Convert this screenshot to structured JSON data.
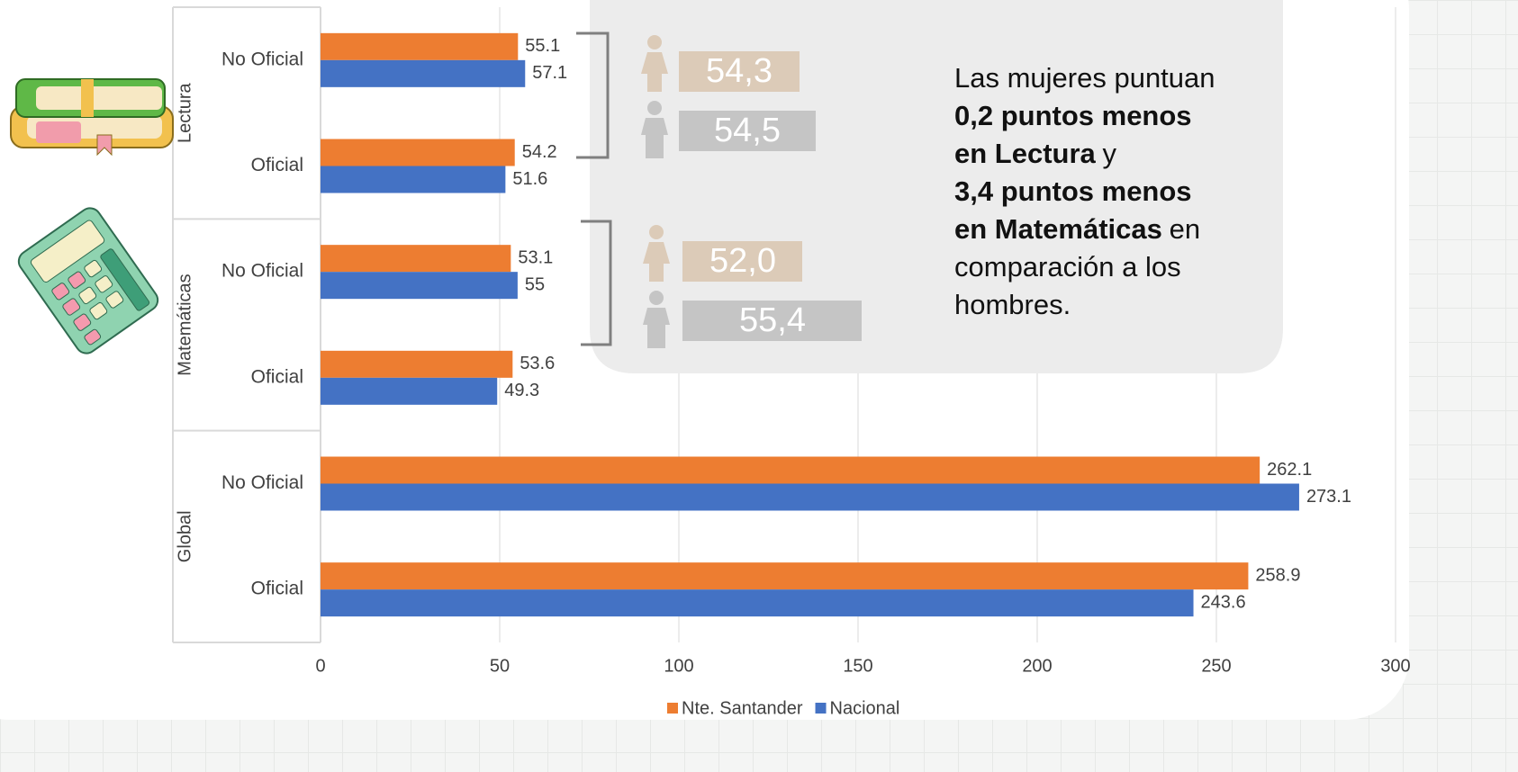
{
  "chart_data": {
    "type": "bar",
    "orientation": "horizontal",
    "groups": [
      "Lectura",
      "Matemáticas",
      "Global"
    ],
    "categories": [
      "No Oficial",
      "Oficial",
      "No Oficial",
      "Oficial",
      "No Oficial",
      "Oficial"
    ],
    "series": [
      {
        "name": "Nte. Santander",
        "color": "#ed7d31",
        "values": [
          55.1,
          54.2,
          53.1,
          53.6,
          262.1,
          258.9
        ]
      },
      {
        "name": "Nacional",
        "color": "#4472c4",
        "values": [
          57.1,
          51.6,
          55,
          49.3,
          273.1,
          243.6
        ]
      }
    ],
    "xlim": [
      0,
      300
    ],
    "xticks": [
      0,
      50,
      100,
      150,
      200,
      250,
      300
    ],
    "grid": true,
    "legend": "bottom"
  },
  "callout": {
    "lectura": {
      "mujeres": "54,3",
      "hombres": "54,5"
    },
    "matematicas": {
      "mujeres": "52,0",
      "hombres": "55,4"
    },
    "lines": [
      [
        {
          "text": "Las mujeres puntuan",
          "bold": false
        }
      ],
      [
        {
          "text": "0,2 puntos menos",
          "bold": true
        }
      ],
      [
        {
          "text": "en Lectura",
          "bold": true
        },
        {
          "text": "y",
          "bold": false
        }
      ],
      [
        {
          "text": "3,4 puntos menos",
          "bold": true
        }
      ],
      [
        {
          "text": "en Matemáticas",
          "bold": true
        },
        {
          "text": "en",
          "bold": false
        }
      ],
      [
        {
          "text": "comparación a los",
          "bold": false
        }
      ],
      [
        {
          "text": "hombres.",
          "bold": false
        }
      ]
    ]
  }
}
